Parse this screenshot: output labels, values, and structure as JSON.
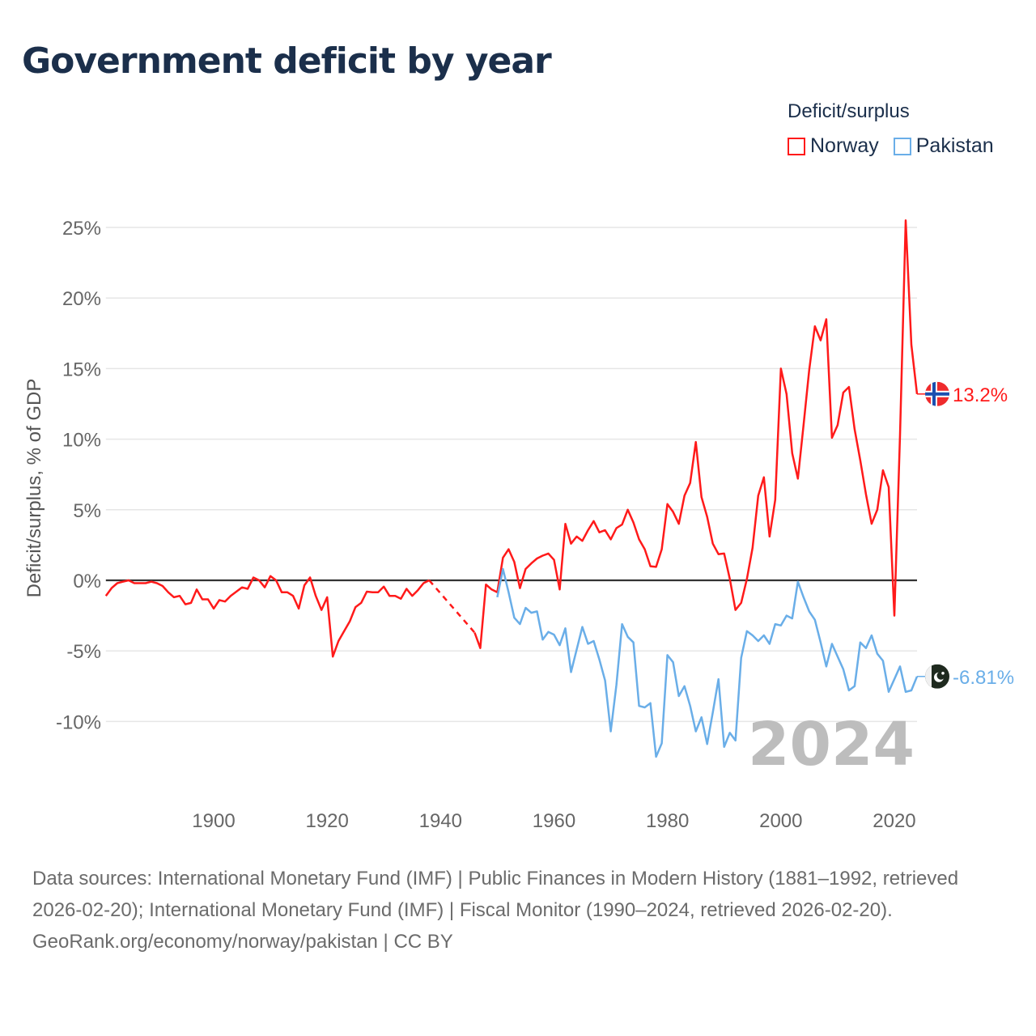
{
  "title": "Government deficit by year",
  "legend": {
    "title": "Deficit/surplus",
    "items": [
      {
        "name": "Norway",
        "color": "#ff1a1a"
      },
      {
        "name": "Pakistan",
        "color": "#6aaee8"
      }
    ]
  },
  "source": {
    "line1": "Data sources: International Monetary Fund (IMF) | Public Finances in Modern History (1881–1992, retrieved 2026-02-20); International Monetary Fund (IMF) | Fiscal Monitor (1990–2024, retrieved 2026-02-20).",
    "line2": "GeoRank.org/economy/norway/pakistan | CC BY"
  },
  "chart_data": {
    "type": "line",
    "title": "Government deficit by year",
    "xlabel": "",
    "ylabel": "Deficit/surplus, % of GDP",
    "xlim": [
      1881,
      2024
    ],
    "ylim": [
      -14,
      26
    ],
    "y_ticks": [
      25,
      20,
      15,
      10,
      5,
      0,
      -5,
      -10
    ],
    "y_tick_labels": [
      "25%",
      "20%",
      "15%",
      "10%",
      "5%",
      "0%",
      "-5%",
      "-10%"
    ],
    "x_ticks": [
      1900,
      1920,
      1940,
      1960,
      1980,
      2000,
      2020
    ],
    "x_tick_labels": [
      "1900",
      "1920",
      "1940",
      "1960",
      "1980",
      "2000",
      "2020"
    ],
    "grid": true,
    "legend_position": "top-right",
    "year_watermark": "2024",
    "series": [
      {
        "name": "Norway",
        "color": "#ff1a1a",
        "start_year": 1881,
        "end_label": "13.2%",
        "flag": "norway-flag",
        "values": [
          -1.1,
          -0.55,
          -0.2,
          -0.1,
          0,
          -0.2,
          -0.2,
          -0.2,
          -0.1,
          -0.2,
          -0.4,
          -0.85,
          -1.2,
          -1.1,
          -1.7,
          -1.6,
          -0.65,
          -1.35,
          -1.35,
          -2.0,
          -1.4,
          -1.5,
          -1.1,
          -0.8,
          -0.5,
          -0.6,
          0.2,
          0,
          -0.5,
          0.3,
          0,
          -0.85,
          -0.85,
          -1.1,
          -2.0,
          -0.35,
          0.2,
          -1.1,
          -2.1,
          -1.2,
          -5.4,
          -4.3,
          -3.6,
          -2.9,
          -1.9,
          -1.6,
          -0.8,
          -0.85,
          -0.85,
          -0.45,
          -1.1,
          -1.1,
          -1.3,
          -0.6,
          -1.1,
          -0.7,
          -0.2,
          0,
          null,
          null,
          null,
          null,
          null,
          null,
          null,
          -3.7,
          -4.8,
          -0.3,
          -0.65,
          -0.85,
          1.6,
          2.2,
          1.3,
          -0.55,
          0.8,
          1.2,
          1.55,
          1.75,
          1.9,
          1.45,
          -0.65,
          4.0,
          2.6,
          3.1,
          2.8,
          3.55,
          4.2,
          3.4,
          3.55,
          2.9,
          3.7,
          3.95,
          5.0,
          4.1,
          2.9,
          2.2,
          1.0,
          0.95,
          2.2,
          5.4,
          4.85,
          4.0,
          6.0,
          6.9,
          9.8,
          5.9,
          4.5,
          2.6,
          1.85,
          1.9,
          0.1,
          -2.1,
          -1.6,
          0.1,
          2.3,
          6.0,
          7.3,
          3.1,
          5.7,
          15.0,
          13.2,
          9.0,
          7.2,
          11.0,
          14.9,
          18.0,
          17.0,
          18.5,
          10.1,
          11.0,
          13.3,
          13.7,
          10.7,
          8.5,
          6.1,
          4.0,
          5.0,
          7.8,
          6.6,
          -2.5,
          10.3,
          25.5,
          16.7,
          13.2
        ]
      },
      {
        "name": "Pakistan",
        "color": "#6aaee8",
        "start_year": 1950,
        "end_label": "-6.81%",
        "flag": "pakistan-flag",
        "values": [
          -1.2,
          0.8,
          -0.85,
          -2.65,
          -3.1,
          -1.95,
          -2.3,
          -2.2,
          -4.2,
          -3.65,
          -3.85,
          -4.6,
          -3.4,
          -6.5,
          -4.9,
          -3.3,
          -4.5,
          -4.3,
          -5.6,
          -7.1,
          -10.7,
          -7.4,
          -3.1,
          -4.0,
          -4.4,
          -8.9,
          -9.0,
          -8.7,
          -12.5,
          -11.55,
          -5.3,
          -5.8,
          -8.2,
          -7.5,
          -8.9,
          -10.7,
          -9.7,
          -11.6,
          -9.35,
          -7.0,
          -11.8,
          -10.8,
          -11.35,
          -5.5,
          -3.6,
          -3.9,
          -4.3,
          -3.9,
          -4.5,
          -3.1,
          -3.2,
          -2.5,
          -2.7,
          -0.1,
          -1.2,
          -2.2,
          -2.8,
          -4.4,
          -6.1,
          -4.5,
          -5.4,
          -6.3,
          -7.8,
          -7.5,
          -4.4,
          -4.8,
          -3.9,
          -5.2,
          -5.7,
          -7.9,
          -7.0,
          -6.1,
          -7.9,
          -7.8,
          -6.81
        ]
      }
    ]
  }
}
